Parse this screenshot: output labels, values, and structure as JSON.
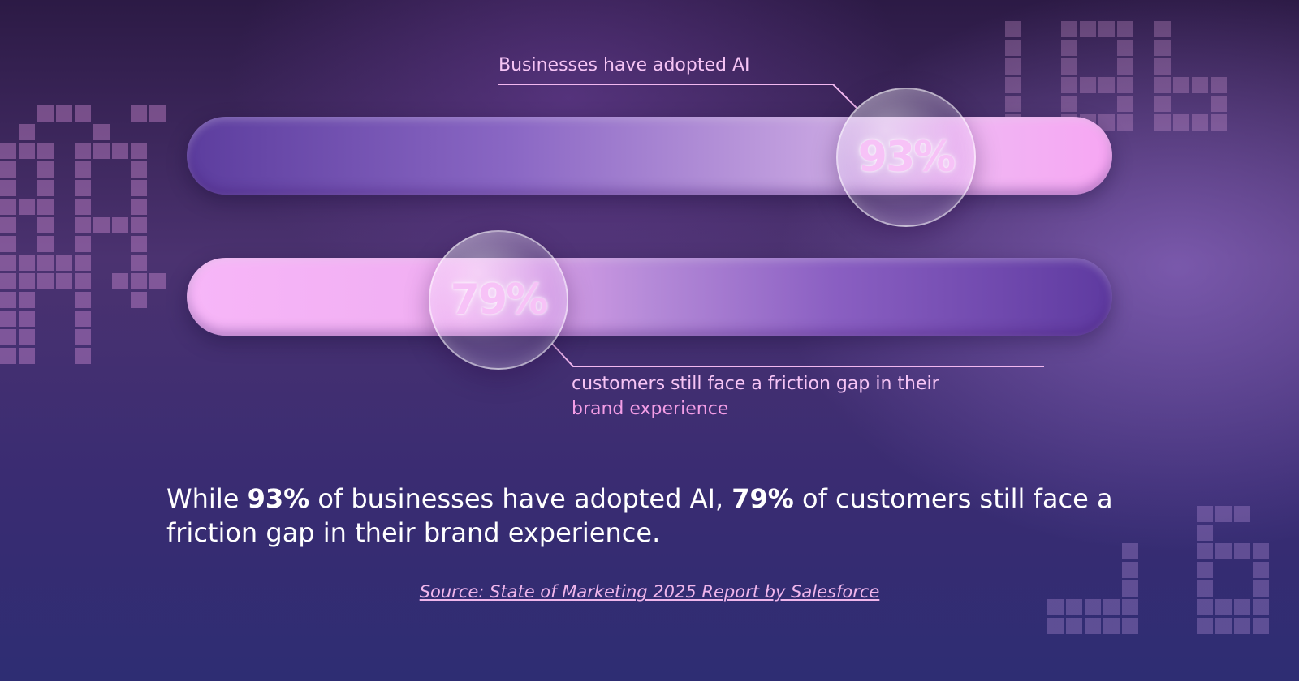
{
  "chart_data": {
    "type": "bar",
    "orientation": "horizontal",
    "categories": [
      "Businesses have adopted AI",
      "customers still face a friction gap in their brand experience"
    ],
    "values": [
      93,
      79
    ],
    "value_labels": [
      "93%",
      "79%"
    ],
    "unit": "%",
    "xlim": [
      0,
      100
    ]
  },
  "labels": {
    "top": "Businesses have adopted AI",
    "bottom_line1": "customers still face a friction gap in their",
    "bottom_line2": "brand experience"
  },
  "headline": {
    "part1": "While ",
    "bold1": "93%",
    "part2": " of businesses have adopted AI, ",
    "bold2": "79%",
    "part3": " of customers still face a friction gap in their brand experience."
  },
  "source": "Source: State of Marketing 2025 Report by Salesforce",
  "colors": {
    "accent_pink": "#f7a6f3",
    "deep_purple": "#5c3d9e",
    "text_pink": "#f6c4f5"
  }
}
